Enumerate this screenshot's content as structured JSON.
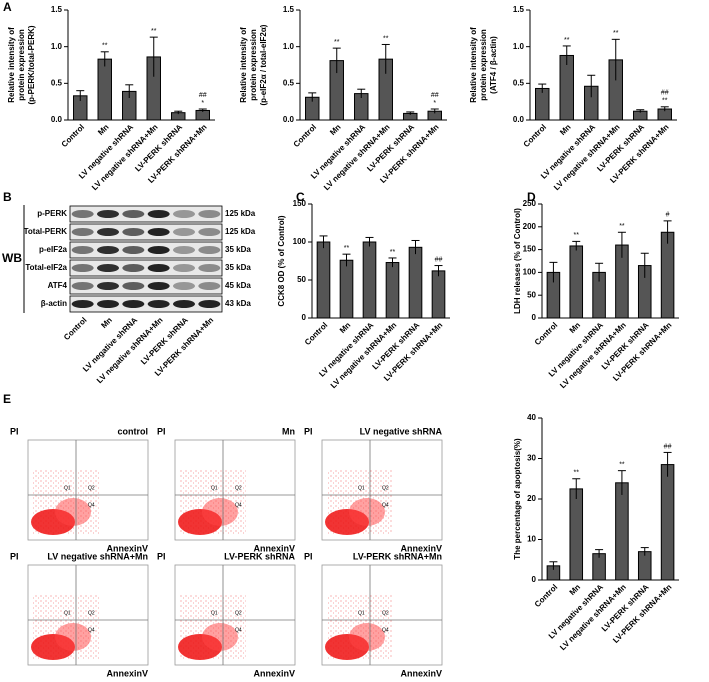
{
  "panels": [
    "A",
    "B",
    "C",
    "D",
    "E"
  ],
  "chart_data": [
    {
      "type": "bar",
      "y_label": [
        "Relative intensity of",
        "protein expression",
        "(p-PERK/total-PERK)"
      ],
      "categories": [
        "Control",
        "Mn",
        "LV negative shRNA",
        "LV negative shRNA+Mn",
        "LV-PERK shRNA",
        "LV-PERK shRNA+Mn"
      ],
      "values": [
        0.33,
        0.83,
        0.39,
        0.86,
        0.1,
        0.13
      ],
      "errors": [
        0.07,
        0.1,
        0.09,
        0.27,
        0.02,
        0.02
      ],
      "annotations": [
        [],
        [
          "**"
        ],
        [],
        [
          "**"
        ],
        [],
        [
          "##",
          "*"
        ]
      ],
      "color": "#555555",
      "ylim": [
        0,
        1.5
      ],
      "yticks": [
        {
          "value": 0,
          "label": "0.0"
        },
        0.5,
        {
          "value": 1,
          "label": "1.0"
        },
        1.5
      ]
    },
    {
      "type": "bar",
      "y_label": [
        "Relative intensity of",
        "protein expression",
        "(p-eIF2α / total-eIF2α)"
      ],
      "categories": [
        "Control",
        "Mn",
        "LV negative shRNA",
        "LV negative shRNA+Mn",
        "LV-PERK shRNA",
        "LV-PERK shRNA+Mn"
      ],
      "values": [
        0.31,
        0.81,
        0.36,
        0.83,
        0.09,
        0.12
      ],
      "errors": [
        0.06,
        0.17,
        0.06,
        0.2,
        0.02,
        0.03
      ],
      "annotations": [
        [],
        [
          "**"
        ],
        [],
        [
          "**"
        ],
        [],
        [
          "##",
          "*"
        ]
      ],
      "color": "#555555",
      "ylim": [
        0,
        1.5
      ],
      "yticks": [
        {
          "value": 0,
          "label": "0.0"
        },
        0.5,
        {
          "value": 1,
          "label": "1.0"
        },
        1.5
      ]
    },
    {
      "type": "bar",
      "y_label": [
        "Relative intensity of",
        "protein expression",
        "(ATF4 / β-actin)"
      ],
      "categories": [
        "Control",
        "Mn",
        "LV negative shRNA",
        "LV negative shRNA+Mn",
        "LV-PERK shRNA",
        "LV-PERK shRNA+Mn"
      ],
      "values": [
        0.43,
        0.88,
        0.46,
        0.82,
        0.12,
        0.15
      ],
      "errors": [
        0.06,
        0.13,
        0.15,
        0.28,
        0.02,
        0.03
      ],
      "annotations": [
        [],
        [
          "**"
        ],
        [],
        [
          "**"
        ],
        [],
        [
          "##",
          "**"
        ]
      ],
      "color": "#555555",
      "ylim": [
        0,
        1.5
      ],
      "yticks": [
        {
          "value": 0,
          "label": "0.0"
        },
        0.5,
        {
          "value": 1,
          "label": "1.0"
        },
        1.5
      ]
    },
    {
      "type": "bar",
      "y_label": [
        "CCK8  OD (% of Control)"
      ],
      "categories": [
        "Control",
        "Mn",
        "LV negative shRNA",
        "LV negative shRNA+Mn",
        "LV-PERK shRNA",
        "LV-PERK shRNA+Mn"
      ],
      "values": [
        100,
        76,
        100,
        73,
        93,
        62
      ],
      "errors": [
        8,
        8,
        6,
        6,
        9,
        7
      ],
      "annotations": [
        [],
        [
          "**"
        ],
        [],
        [
          "**"
        ],
        [],
        [
          "##"
        ]
      ],
      "color": "#555555",
      "ylim": [
        0,
        150
      ],
      "yticks": [
        0,
        50,
        100,
        150
      ]
    },
    {
      "type": "bar",
      "y_label": [
        "LDH releases (% of Control)"
      ],
      "categories": [
        "Control",
        "Mn",
        "LV negative shRNA",
        "LV negative shRNA+Mn",
        "LV-PERK shRNA",
        "LV-PERK shRNA+Mn"
      ],
      "values": [
        100,
        158,
        100,
        160,
        115,
        188
      ],
      "errors": [
        22,
        10,
        20,
        28,
        27,
        25
      ],
      "annotations": [
        [],
        [
          "**"
        ],
        [],
        [
          "**"
        ],
        [],
        [
          "#"
        ]
      ],
      "color": "#555555",
      "ylim": [
        0,
        250
      ],
      "yticks": [
        0,
        50,
        100,
        150,
        200,
        250
      ]
    },
    {
      "type": "bar",
      "y_label": [
        "The percentage of apoptosis(%)"
      ],
      "categories": [
        "Control",
        "Mn",
        "LV negative shRNA",
        "LV negative shRNA+Mn",
        "LV-PERK shRNA",
        "LV-PERK shRNA+Mn"
      ],
      "values": [
        3.5,
        22.5,
        6.5,
        24,
        7,
        28.5
      ],
      "errors": [
        1,
        2.5,
        1,
        3,
        1,
        3
      ],
      "annotations": [
        [],
        [
          "**"
        ],
        [],
        [
          "**"
        ],
        [],
        [
          "##"
        ]
      ],
      "color": "#555555",
      "ylim": [
        0,
        40
      ],
      "yticks": [
        0,
        10,
        20,
        30,
        40
      ]
    }
  ],
  "blot": {
    "label": "WB",
    "rows": [
      {
        "name": "p-PERK",
        "size": "125 kDa"
      },
      {
        "name": "Total-PERK",
        "size": "125 kDa"
      },
      {
        "name": "p-eIF2a",
        "size": "35 kDa"
      },
      {
        "name": "Total-eIF2a",
        "size": "35 kDa"
      },
      {
        "name": "ATF4",
        "size": "45 kDa"
      },
      {
        "name": "β-actin",
        "size": "43 kDa"
      }
    ],
    "categories": [
      "Control",
      "Mn",
      "LV negative shRNA",
      "LV negative shRNA+Mn",
      "LV-PERK shRNA",
      "LV-PERK shRNA+Mn"
    ]
  },
  "flow_plots": {
    "y_label": "PI",
    "x_label": "AnnexinV",
    "quadrants": [
      "Q1",
      "Q2",
      "Q4"
    ],
    "titles": [
      "control",
      "Mn",
      "LV negative shRNA",
      "LV negative shRNA+Mn",
      "LV-PERK shRNA",
      "LV-PERK shRNA+Mn"
    ]
  }
}
